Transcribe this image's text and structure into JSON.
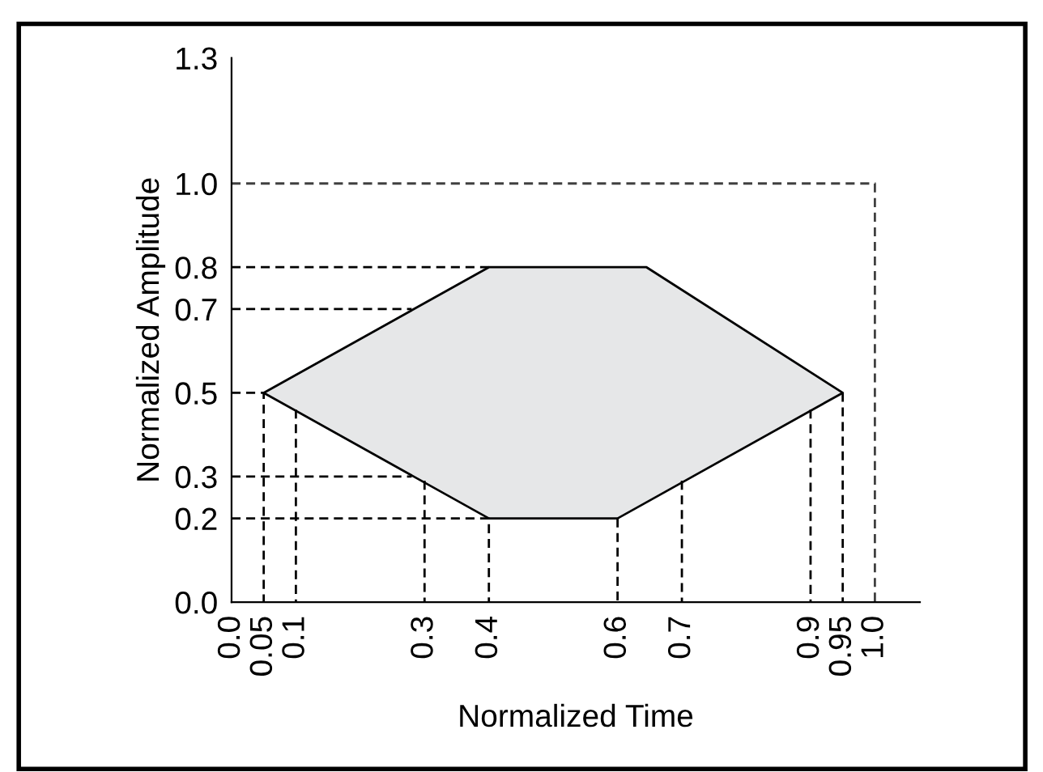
{
  "chart_data": {
    "type": "line",
    "xlabel": "Normalized Time",
    "ylabel": "Normalized Amplitude",
    "xlim": [
      0,
      1.07
    ],
    "ylim": [
      0,
      1.3
    ],
    "xticks": [
      {
        "value": 0.0,
        "label": "0.0"
      },
      0.05,
      0.1,
      0.3,
      0.4,
      0.6,
      0.7,
      0.9,
      0.95,
      {
        "value": 1.0,
        "label": "1.0"
      }
    ],
    "yticks": [
      {
        "value": 0.0,
        "label": "0.0"
      },
      0.2,
      0.3,
      0.5,
      0.7,
      0.8,
      {
        "value": 1.0,
        "label": "1.0"
      },
      1.3
    ],
    "grid": false,
    "legend": false,
    "marker": "none",
    "line_style": "dashed",
    "series": [
      {
        "type": "area",
        "color": "#e6e7e8",
        "x": [
          0.05,
          0.4,
          0.645,
          0.95,
          0.6,
          0.4,
          0.05
        ],
        "values": [
          0.5,
          0.8,
          0.8,
          0.5,
          0.2,
          0.2,
          0.5
        ]
      },
      {
        "color": "#000000",
        "x": [
          0,
          0.05,
          0.05
        ],
        "values": [
          0.5,
          0.5,
          0
        ]
      },
      {
        "color": "#000000",
        "x": [
          0.1,
          0.1
        ],
        "values": [
          0.46,
          0
        ]
      },
      {
        "color": "#000000",
        "x": [
          0,
          0.28
        ],
        "values": [
          0.7,
          0.7
        ]
      },
      {
        "color": "#000000",
        "x": [
          0,
          0.4
        ],
        "values": [
          0.8,
          0.8
        ]
      },
      {
        "color": "#000000",
        "x": [
          0,
          0.28
        ],
        "values": [
          0.3,
          0.3
        ]
      },
      {
        "color": "#000000",
        "x": [
          0.3,
          0.3
        ],
        "values": [
          0.29,
          0
        ]
      },
      {
        "color": "#000000",
        "x": [
          0,
          0.4,
          0.4
        ],
        "values": [
          0.2,
          0.2,
          0
        ]
      },
      {
        "color": "#000000",
        "x": [
          0.6,
          0.6
        ],
        "values": [
          0.2,
          0
        ]
      },
      {
        "color": "#000000",
        "x": [
          0.7,
          0.7
        ],
        "values": [
          0.29,
          0
        ]
      },
      {
        "color": "#000000",
        "x": [
          0.9,
          0.9
        ],
        "values": [
          0.46,
          0
        ]
      },
      {
        "color": "#000000",
        "x": [
          0.95,
          0.95
        ],
        "values": [
          0.5,
          0
        ]
      },
      {
        "color": "#404040",
        "x": [
          0,
          1.0,
          1.0
        ],
        "values": [
          1.0,
          1.0,
          0
        ]
      }
    ]
  }
}
